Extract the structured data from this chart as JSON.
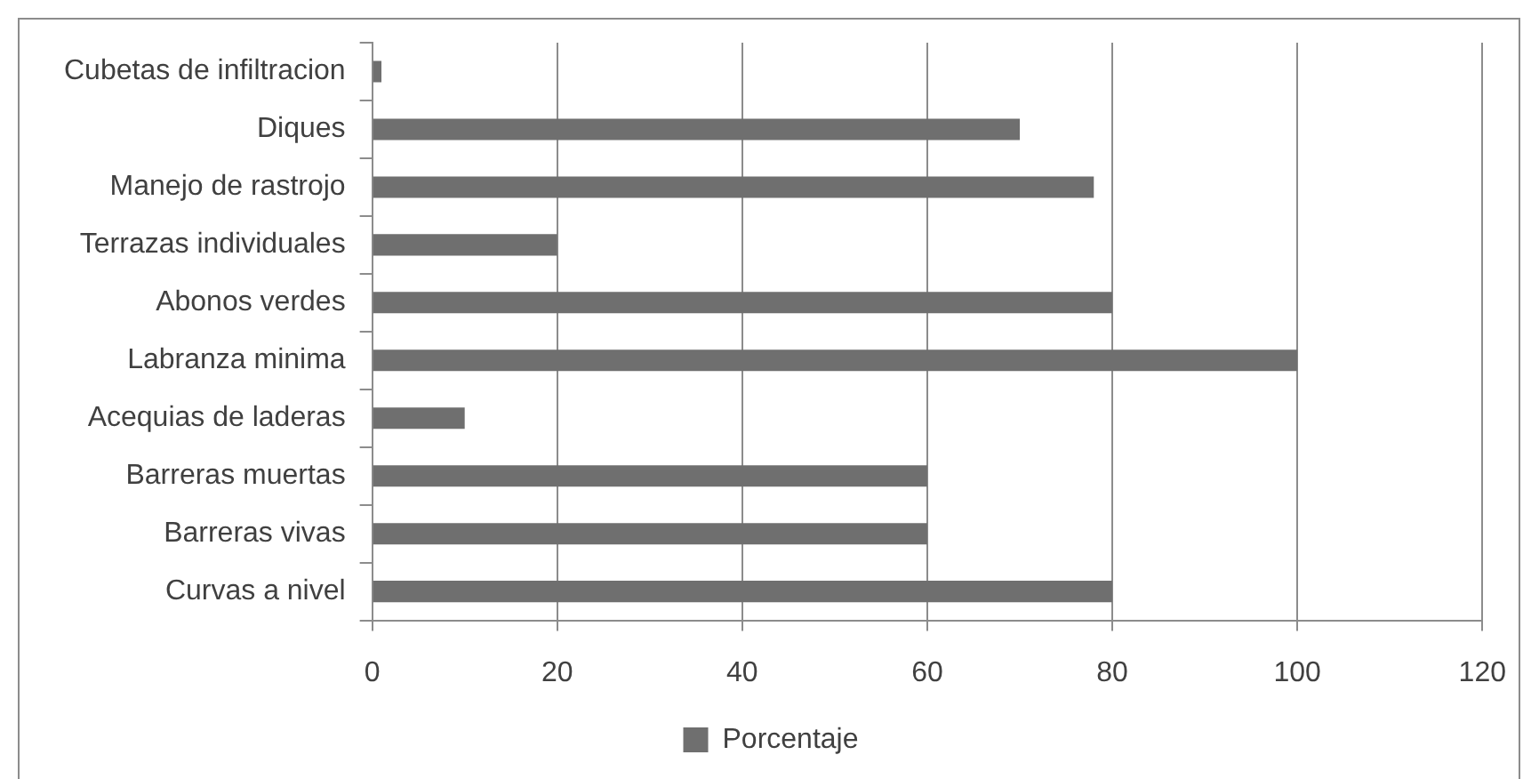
{
  "chart_data": {
    "type": "bar",
    "orientation": "horizontal",
    "categories": [
      "Cubetas de infiltracion",
      "Diques",
      "Manejo de rastrojo",
      "Terrazas individuales",
      "Abonos verdes",
      "Labranza minima",
      "Acequias de laderas",
      "Barreras muertas",
      "Barreras vivas",
      "Curvas a nivel"
    ],
    "series": [
      {
        "name": "Porcentaje",
        "color": "#6f6f6f",
        "values": [
          1,
          70,
          78,
          20,
          80,
          100,
          10,
          60,
          60,
          80
        ]
      }
    ],
    "xlim": [
      0,
      120
    ],
    "xticks": [
      0,
      20,
      40,
      60,
      80,
      100,
      120
    ],
    "grid": "x",
    "legend": "bottom"
  }
}
